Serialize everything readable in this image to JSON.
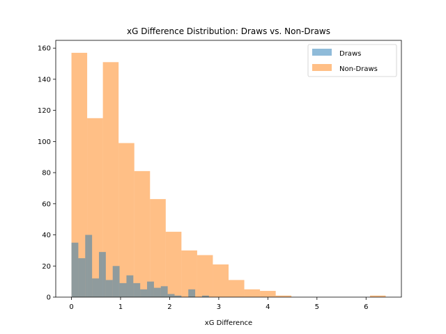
{
  "chart_data": {
    "type": "histogram",
    "title": "xG Difference Distribution: Draws vs. Non-Draws",
    "xlabel": "xG Difference",
    "ylabel": "",
    "xlim": [
      -0.32,
      6.72
    ],
    "ylim": [
      0,
      165
    ],
    "xticks": [
      0,
      1,
      2,
      3,
      4,
      5,
      6
    ],
    "yticks": [
      0,
      20,
      40,
      60,
      80,
      100,
      120,
      140,
      160
    ],
    "grid": false,
    "legend_position": "top-right",
    "series": [
      {
        "name": "Non-Draws",
        "color": "#ff7f0e",
        "opacity": 0.5,
        "bins": [
          [
            0.0,
            0.32,
            157
          ],
          [
            0.32,
            0.64,
            115
          ],
          [
            0.64,
            0.96,
            151
          ],
          [
            0.96,
            1.28,
            99
          ],
          [
            1.28,
            1.6,
            81
          ],
          [
            1.6,
            1.92,
            63
          ],
          [
            1.92,
            2.24,
            42
          ],
          [
            2.24,
            2.56,
            30
          ],
          [
            2.56,
            2.88,
            27
          ],
          [
            2.88,
            3.2,
            21
          ],
          [
            3.2,
            3.52,
            11
          ],
          [
            3.52,
            3.84,
            5
          ],
          [
            3.84,
            4.16,
            4
          ],
          [
            4.16,
            4.48,
            1
          ],
          [
            4.48,
            4.8,
            0
          ],
          [
            4.8,
            5.12,
            0
          ],
          [
            5.12,
            5.44,
            0
          ],
          [
            5.44,
            5.76,
            0
          ],
          [
            5.76,
            6.08,
            0
          ],
          [
            6.08,
            6.4,
            1
          ]
        ]
      },
      {
        "name": "Draws",
        "color": "#1f77b4",
        "opacity": 0.5,
        "bins": [
          [
            0.0,
            0.14,
            35
          ],
          [
            0.14,
            0.28,
            25
          ],
          [
            0.28,
            0.42,
            40
          ],
          [
            0.42,
            0.56,
            12
          ],
          [
            0.56,
            0.7,
            29
          ],
          [
            0.7,
            0.84,
            11
          ],
          [
            0.84,
            0.98,
            20
          ],
          [
            0.98,
            1.12,
            9
          ],
          [
            1.12,
            1.26,
            14
          ],
          [
            1.26,
            1.4,
            9
          ],
          [
            1.4,
            1.54,
            5
          ],
          [
            1.54,
            1.68,
            10
          ],
          [
            1.68,
            1.82,
            6
          ],
          [
            1.82,
            1.96,
            7
          ],
          [
            1.96,
            2.1,
            2
          ],
          [
            2.1,
            2.24,
            1
          ],
          [
            2.24,
            2.38,
            0
          ],
          [
            2.38,
            2.52,
            5
          ],
          [
            2.52,
            2.66,
            0
          ],
          [
            2.66,
            2.8,
            1
          ]
        ]
      }
    ],
    "legend": [
      "Draws",
      "Non-Draws"
    ]
  }
}
